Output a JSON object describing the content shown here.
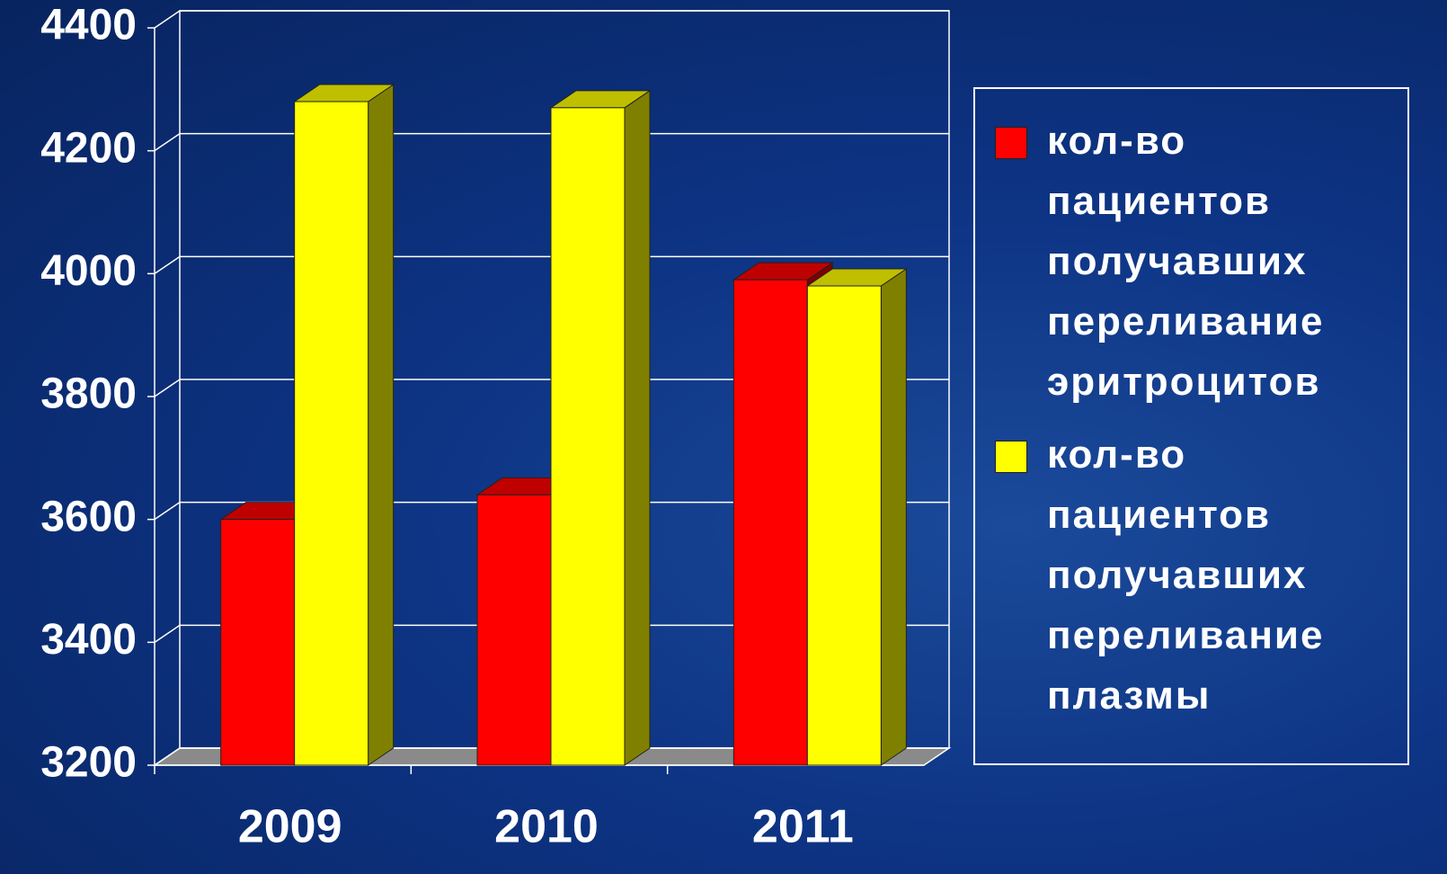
{
  "chart_data": {
    "type": "bar3d",
    "categories": [
      "2009",
      "2010",
      "2011"
    ],
    "series": [
      {
        "name": "кол-во пациентов получавших переливание эритроцитов",
        "color": "#ff0000",
        "values": [
          3600,
          3640,
          3990
        ]
      },
      {
        "name": "кол-во пациентов получавших переливание плазмы",
        "color": "#ffff00",
        "values": [
          4280,
          4270,
          3980
        ]
      }
    ],
    "ylim": [
      3200,
      4400
    ],
    "yticks": [
      3200,
      3400,
      3600,
      3800,
      4000,
      4200,
      4400
    ],
    "grid": true,
    "legend": "right"
  }
}
